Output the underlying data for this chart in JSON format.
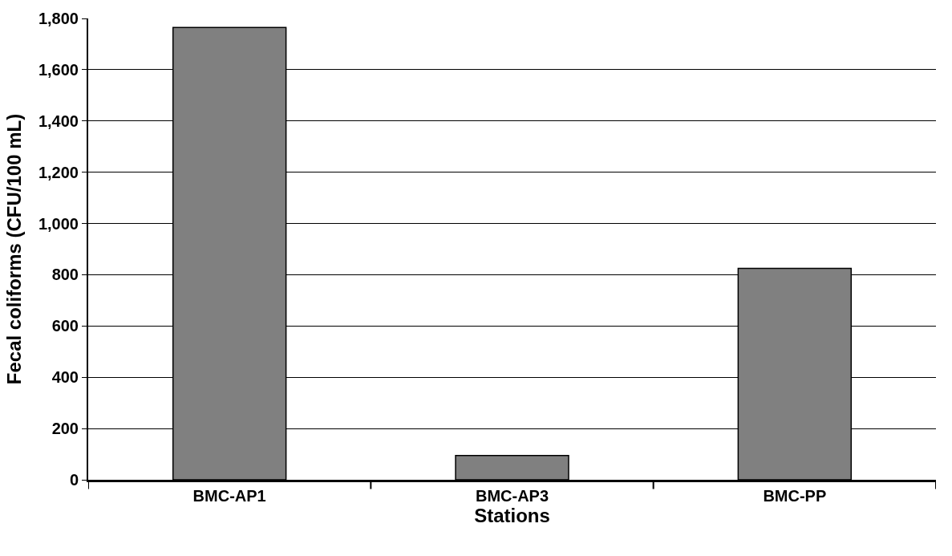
{
  "chart_data": {
    "type": "bar",
    "xlabel": "Stations",
    "ylabel": "Fecal coliforms (CFU/100 mL)",
    "categories": [
      "BMC-AP1",
      "BMC-AP3",
      "BMC-PP"
    ],
    "values": [
      1765,
      95,
      825
    ],
    "color": "#808080",
    "ylim": [
      0,
      1800
    ],
    "yticks": [
      0,
      {
        "value": 200,
        "label": "200"
      },
      {
        "value": 400,
        "label": "400"
      },
      {
        "value": 600,
        "label": "600"
      },
      {
        "value": 800,
        "label": "800"
      },
      {
        "value": 1000,
        "label": "1,000"
      },
      {
        "value": 1200,
        "label": "1,200"
      },
      {
        "value": 1400,
        "label": "1,400"
      },
      {
        "value": 1600,
        "label": "1,600"
      },
      {
        "value": 1800,
        "label": "1,800"
      }
    ],
    "grid": "y"
  }
}
